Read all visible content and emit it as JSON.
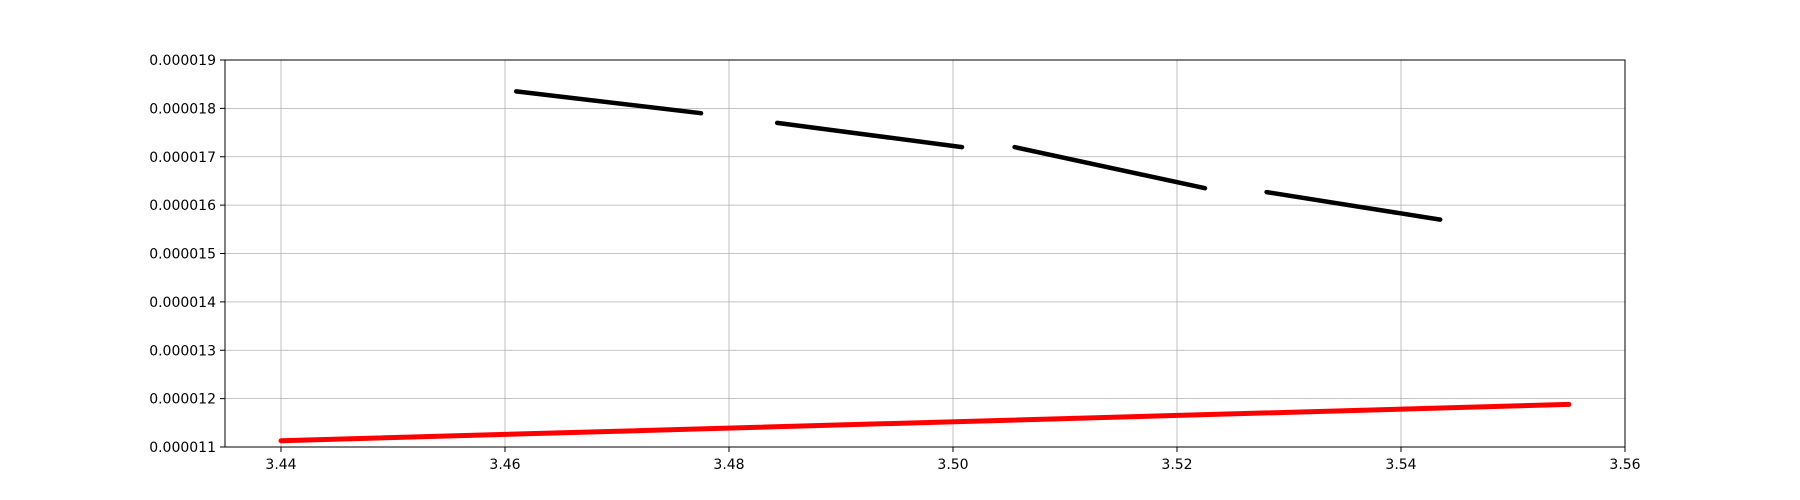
{
  "chart_data": {
    "type": "scatter",
    "title": "",
    "xlabel": "",
    "ylabel": "",
    "xlim": [
      3.435,
      3.56
    ],
    "ylim": [
      1.1e-05,
      1.9e-05
    ],
    "grid": true,
    "x_ticks": [
      "3.44",
      "3.46",
      "3.48",
      "3.50",
      "3.52",
      "3.54",
      "3.56"
    ],
    "y_ticks": [
      "0.000011",
      "0.000012",
      "0.000013",
      "0.000014",
      "0.000015",
      "0.000016",
      "0.000017",
      "0.000018",
      "0.000019"
    ],
    "x_tick_values": [
      3.44,
      3.46,
      3.48,
      3.5,
      3.52,
      3.54,
      3.56
    ],
    "y_tick_values": [
      1.1e-05,
      1.2e-05,
      1.3e-05,
      1.4e-05,
      1.5e-05,
      1.6e-05,
      1.7e-05,
      1.8e-05,
      1.9e-05
    ],
    "series": [
      {
        "color": "#ff0000",
        "segments": [
          [
            [
              3.44,
              1.113e-05
            ],
            [
              3.555,
              1.188e-05
            ]
          ]
        ]
      },
      {
        "color": "#000000",
        "segments": [
          [
            [
              3.461,
              1.835e-05
            ],
            [
              3.4775,
              1.79e-05
            ]
          ],
          [
            [
              3.4843,
              1.77e-05
            ],
            [
              3.5008,
              1.72e-05
            ]
          ],
          [
            [
              3.5055,
              1.72e-05
            ],
            [
              3.5225,
              1.635e-05
            ]
          ],
          [
            [
              3.528,
              1.627e-05
            ],
            [
              3.5435,
              1.57e-05
            ]
          ]
        ]
      }
    ]
  }
}
